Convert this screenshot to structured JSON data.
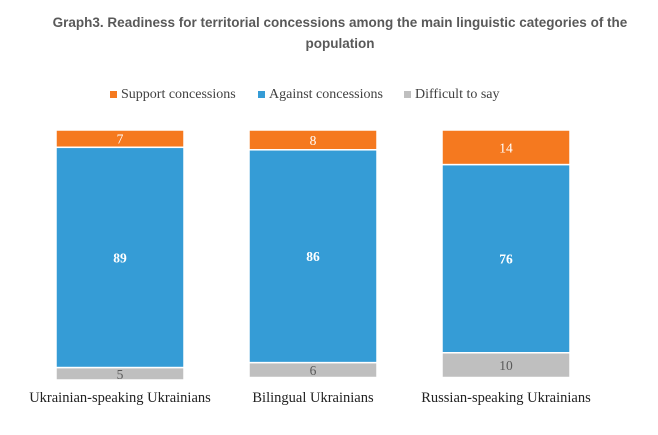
{
  "title": "Graph3. Readiness for territorial concessions among the main linguistic categories of the population",
  "chart_data": {
    "type": "bar",
    "stacked": true,
    "title": "Graph3. Readiness for territorial concessions among the main linguistic categories of the population",
    "categories": [
      "Ukrainian-speaking Ukrainians",
      "Bilingual Ukrainians",
      "Russian-speaking Ukrainians"
    ],
    "series": [
      {
        "name": "Support concessions",
        "color": "#F5791F",
        "values": [
          7,
          8,
          14
        ]
      },
      {
        "name": "Against concessions",
        "color": "#359CD6",
        "values": [
          89,
          86,
          76
        ]
      },
      {
        "name": "Difficult to say",
        "color": "#BFBFBF",
        "values": [
          5,
          6,
          10
        ]
      }
    ],
    "ylim": [
      0,
      101
    ],
    "xlabel": "",
    "ylabel": "",
    "legend_position": "top",
    "grid": false,
    "data_labels": true
  }
}
